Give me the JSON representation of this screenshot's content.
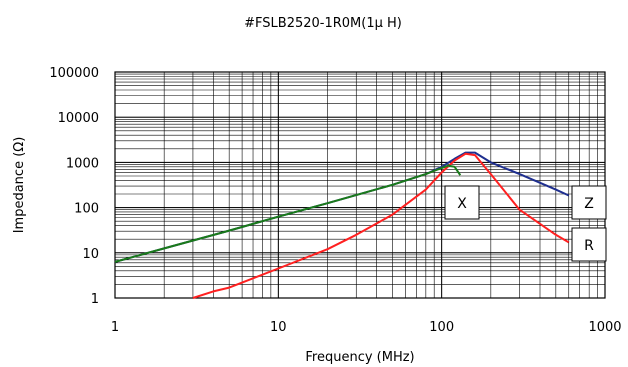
{
  "chart_data": {
    "type": "line",
    "title": "#FSLB2520-1R0M(1μ H)",
    "xlabel": "Frequency (MHz)",
    "ylabel": "Impedance (Ω)",
    "x_scale": "log",
    "y_scale": "log",
    "xlim": [
      1,
      1000
    ],
    "ylim": [
      1,
      100000
    ],
    "x_ticks": [
      "1",
      "10",
      "100",
      "1000"
    ],
    "y_ticks": [
      "1",
      "10",
      "100",
      "1000",
      "10000",
      "100000"
    ],
    "grid": true,
    "legend": "inline labels",
    "series": [
      {
        "name": "Z",
        "color": "#1f2f8f",
        "x": [
          1,
          2,
          5,
          10,
          20,
          50,
          80,
          100,
          120,
          140,
          160,
          200,
          300,
          500,
          600
        ],
        "y": [
          6.3,
          12.5,
          31,
          63,
          125,
          320,
          550,
          800,
          1200,
          1650,
          1650,
          1000,
          550,
          250,
          185
        ]
      },
      {
        "name": "R",
        "color": "#ff2020",
        "x": [
          3,
          4,
          5,
          10,
          20,
          30,
          50,
          80,
          100,
          120,
          140,
          160,
          200,
          300,
          500,
          600
        ],
        "y": [
          1,
          1.4,
          1.7,
          4.5,
          12,
          25,
          70,
          250,
          600,
          1100,
          1550,
          1450,
          550,
          90,
          25,
          17
        ]
      },
      {
        "name": "X",
        "color": "#1a7a1a",
        "x": [
          1,
          2,
          5,
          10,
          20,
          50,
          80,
          100,
          110,
          120,
          130
        ],
        "y": [
          6.3,
          12.5,
          31,
          63,
          125,
          320,
          550,
          750,
          850,
          800,
          520
        ]
      }
    ]
  }
}
